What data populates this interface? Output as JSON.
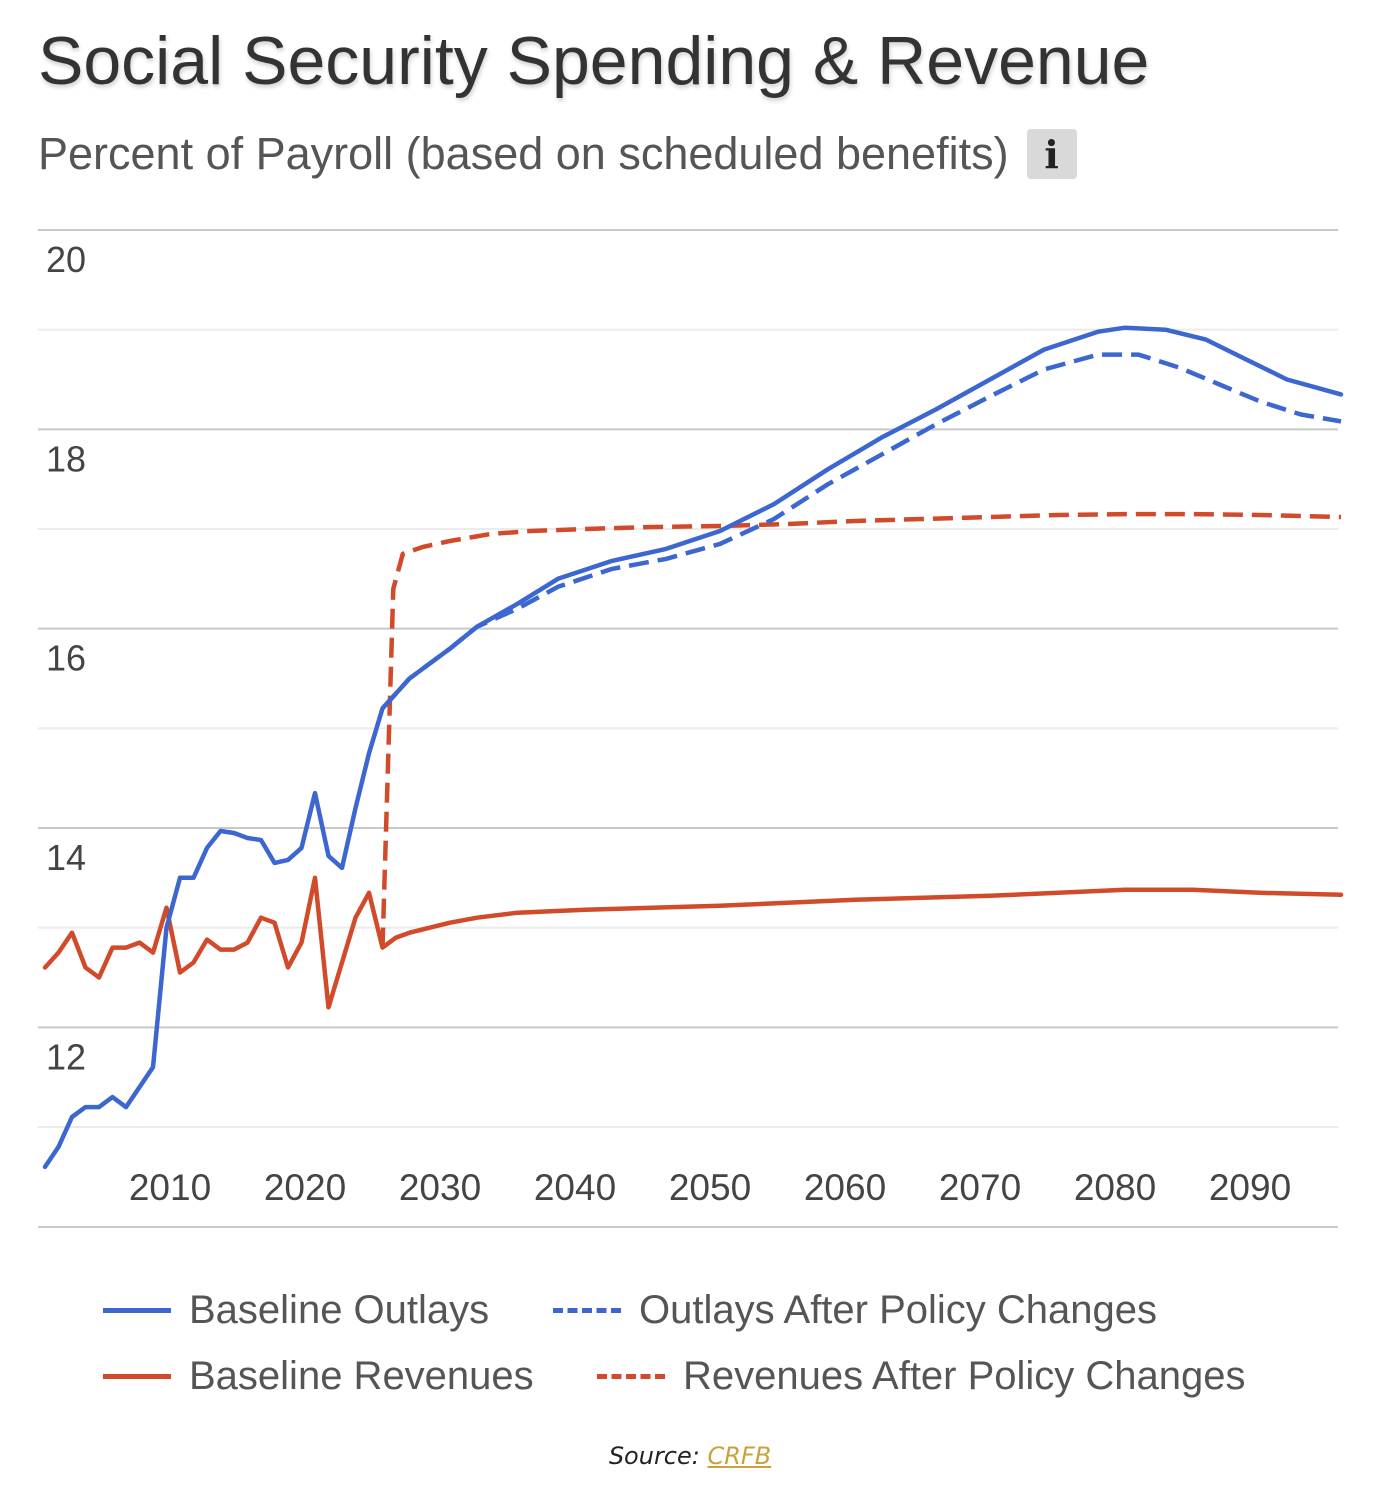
{
  "header": {
    "title": "Social Security Spending & Revenue",
    "subtitle": "Percent of Payroll (based on scheduled benefits)",
    "info_icon_glyph": "i"
  },
  "source": {
    "prefix": "Source: ",
    "link_text": "CRFB"
  },
  "colors": {
    "blue": "#3c67d0",
    "red": "#d14a2a",
    "grid_major": "#c8c8c8",
    "grid_minor": "#ebebeb"
  },
  "chart_data": {
    "type": "line",
    "title": "Social Security Spending & Revenue",
    "subtitle": "Percent of Payroll (based on scheduled benefits)",
    "xlabel": "",
    "ylabel": "",
    "xlim": [
      2000,
      2096
    ],
    "ylim": [
      11,
      20
    ],
    "x_ticks": [
      2010,
      2020,
      2030,
      2040,
      2050,
      2060,
      2070,
      2080,
      2090
    ],
    "y_ticks": [
      12,
      14,
      16,
      18,
      20
    ],
    "grid": true,
    "legend_position": "bottom",
    "series": [
      {
        "name": "Baseline Outlays",
        "color": "#3c67d0",
        "style": "solid",
        "points": [
          [
            2000,
            10.6
          ],
          [
            2001,
            10.8
          ],
          [
            2002,
            11.1
          ],
          [
            2003,
            11.2
          ],
          [
            2004,
            11.2
          ],
          [
            2005,
            11.3
          ],
          [
            2006,
            11.2
          ],
          [
            2007,
            11.4
          ],
          [
            2008,
            11.6
          ],
          [
            2009,
            13.0
          ],
          [
            2010,
            13.5
          ],
          [
            2011,
            13.5
          ],
          [
            2012,
            13.8
          ],
          [
            2013,
            13.97
          ],
          [
            2014,
            13.95
          ],
          [
            2015,
            13.9
          ],
          [
            2016,
            13.88
          ],
          [
            2017,
            13.65
          ],
          [
            2018,
            13.68
          ],
          [
            2019,
            13.8
          ],
          [
            2020,
            14.35
          ],
          [
            2021,
            13.72
          ],
          [
            2022,
            13.6
          ],
          [
            2023,
            14.2
          ],
          [
            2024,
            14.75
          ],
          [
            2025,
            15.2
          ],
          [
            2027,
            15.5
          ],
          [
            2030,
            15.8
          ],
          [
            2032,
            16.02
          ],
          [
            2035,
            16.25
          ],
          [
            2038,
            16.5
          ],
          [
            2042,
            16.68
          ],
          [
            2046,
            16.8
          ],
          [
            2050,
            16.98
          ],
          [
            2054,
            17.25
          ],
          [
            2058,
            17.6
          ],
          [
            2062,
            17.92
          ],
          [
            2066,
            18.2
          ],
          [
            2070,
            18.5
          ],
          [
            2074,
            18.8
          ],
          [
            2078,
            18.98
          ],
          [
            2080,
            19.02
          ],
          [
            2083,
            19.0
          ],
          [
            2086,
            18.9
          ],
          [
            2089,
            18.7
          ],
          [
            2092,
            18.5
          ],
          [
            2096,
            18.35
          ]
        ]
      },
      {
        "name": "Outlays After Policy Changes",
        "color": "#3c67d0",
        "style": "dashed",
        "points": [
          [
            2025,
            15.2
          ],
          [
            2027,
            15.5
          ],
          [
            2030,
            15.8
          ],
          [
            2032,
            16.02
          ],
          [
            2035,
            16.2
          ],
          [
            2038,
            16.42
          ],
          [
            2042,
            16.6
          ],
          [
            2046,
            16.7
          ],
          [
            2050,
            16.85
          ],
          [
            2054,
            17.1
          ],
          [
            2058,
            17.45
          ],
          [
            2062,
            17.75
          ],
          [
            2066,
            18.05
          ],
          [
            2070,
            18.33
          ],
          [
            2074,
            18.6
          ],
          [
            2078,
            18.75
          ],
          [
            2081,
            18.75
          ],
          [
            2084,
            18.62
          ],
          [
            2087,
            18.45
          ],
          [
            2090,
            18.28
          ],
          [
            2093,
            18.15
          ],
          [
            2096,
            18.08
          ]
        ]
      },
      {
        "name": "Baseline Revenues",
        "color": "#d14a2a",
        "style": "solid",
        "points": [
          [
            2000,
            12.6
          ],
          [
            2001,
            12.75
          ],
          [
            2002,
            12.95
          ],
          [
            2003,
            12.6
          ],
          [
            2004,
            12.5
          ],
          [
            2005,
            12.8
          ],
          [
            2006,
            12.8
          ],
          [
            2007,
            12.85
          ],
          [
            2008,
            12.75
          ],
          [
            2009,
            13.2
          ],
          [
            2010,
            12.55
          ],
          [
            2011,
            12.65
          ],
          [
            2012,
            12.88
          ],
          [
            2013,
            12.78
          ],
          [
            2014,
            12.78
          ],
          [
            2015,
            12.85
          ],
          [
            2016,
            13.1
          ],
          [
            2017,
            13.05
          ],
          [
            2018,
            12.6
          ],
          [
            2019,
            12.85
          ],
          [
            2020,
            13.5
          ],
          [
            2021,
            12.2
          ],
          [
            2022,
            12.65
          ],
          [
            2023,
            13.1
          ],
          [
            2024,
            13.35
          ],
          [
            2025,
            12.8
          ],
          [
            2026,
            12.9
          ],
          [
            2027,
            12.95
          ],
          [
            2030,
            13.05
          ],
          [
            2032,
            13.1
          ],
          [
            2035,
            13.15
          ],
          [
            2040,
            13.18
          ],
          [
            2050,
            13.22
          ],
          [
            2060,
            13.28
          ],
          [
            2070,
            13.32
          ],
          [
            2080,
            13.38
          ],
          [
            2085,
            13.38
          ],
          [
            2090,
            13.35
          ],
          [
            2096,
            13.33
          ]
        ]
      },
      {
        "name": "Revenues After Policy Changes",
        "color": "#d14a2a",
        "style": "dashed",
        "points": [
          [
            2025,
            12.8
          ],
          [
            2025.8,
            16.4
          ],
          [
            2026.5,
            16.75
          ],
          [
            2028,
            16.82
          ],
          [
            2030,
            16.88
          ],
          [
            2033,
            16.95
          ],
          [
            2036,
            16.98
          ],
          [
            2040,
            17.0
          ],
          [
            2045,
            17.02
          ],
          [
            2050,
            17.03
          ],
          [
            2055,
            17.05
          ],
          [
            2060,
            17.08
          ],
          [
            2065,
            17.1
          ],
          [
            2070,
            17.12
          ],
          [
            2075,
            17.14
          ],
          [
            2080,
            17.15
          ],
          [
            2085,
            17.15
          ],
          [
            2090,
            17.14
          ],
          [
            2096,
            17.12
          ]
        ]
      }
    ]
  }
}
